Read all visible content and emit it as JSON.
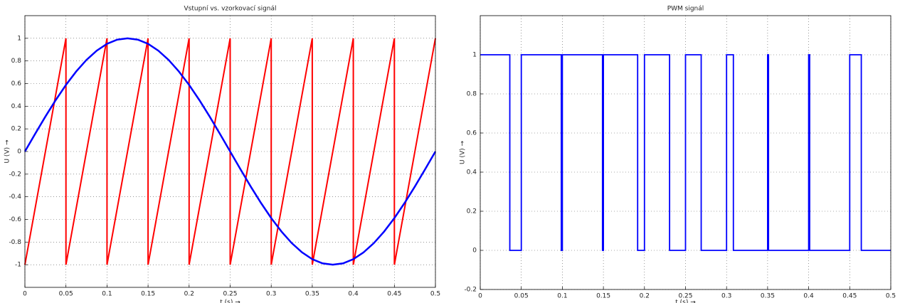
{
  "chart_data": [
    {
      "type": "line",
      "title": "Vstupní vs. vzorkovací signál",
      "xlabel": "t (s) →",
      "ylabel": "U (V) →",
      "xlim": [
        0,
        0.5
      ],
      "ylim": [
        -1.2,
        1.2
      ],
      "xticks": [
        0,
        0.05,
        0.1,
        0.15,
        0.2,
        0.25,
        0.3,
        0.35,
        0.4,
        0.45,
        0.5
      ],
      "yticks": [
        -1,
        -0.8,
        -0.6,
        -0.4,
        -0.2,
        0,
        0.2,
        0.4,
        0.6,
        0.8,
        1
      ],
      "grid": true,
      "series": [
        {
          "color": "#ff0000",
          "linewidth": 2,
          "x": [
            0,
            0.05,
            0.05,
            0.1,
            0.1,
            0.15,
            0.15,
            0.2,
            0.2,
            0.25,
            0.25,
            0.3,
            0.3,
            0.35,
            0.35,
            0.4,
            0.4,
            0.45,
            0.45,
            0.5
          ],
          "values": [
            -1,
            1,
            -1,
            1,
            -1,
            1,
            -1,
            1,
            -1,
            1,
            -1,
            1,
            -1,
            1,
            -1,
            1,
            -1,
            1,
            -1,
            1
          ]
        },
        {
          "color": "#0000ff",
          "linewidth": 2.5,
          "x": [
            0,
            0.0125,
            0.025,
            0.0375,
            0.05,
            0.0625,
            0.075,
            0.0875,
            0.1,
            0.1125,
            0.125,
            0.1375,
            0.15,
            0.1625,
            0.175,
            0.1875,
            0.2,
            0.2125,
            0.225,
            0.2375,
            0.25,
            0.2625,
            0.275,
            0.2875,
            0.3,
            0.3125,
            0.325,
            0.3375,
            0.35,
            0.3625,
            0.375,
            0.3875,
            0.4,
            0.4125,
            0.425,
            0.4375,
            0.45,
            0.4625,
            0.475,
            0.4875,
            0.5
          ],
          "values": [
            0,
            0.156,
            0.309,
            0.454,
            0.588,
            0.707,
            0.809,
            0.891,
            0.951,
            0.988,
            1,
            0.988,
            0.951,
            0.891,
            0.809,
            0.707,
            0.588,
            0.454,
            0.309,
            0.156,
            0,
            -0.156,
            -0.309,
            -0.454,
            -0.588,
            -0.707,
            -0.809,
            -0.891,
            -0.951,
            -0.988,
            -1,
            -0.988,
            -0.951,
            -0.891,
            -0.809,
            -0.707,
            -0.588,
            -0.454,
            -0.309,
            -0.156,
            0
          ]
        }
      ]
    },
    {
      "type": "line",
      "title": "PWM signál",
      "xlabel": "t (s) →",
      "ylabel": "U (V) →",
      "xlim": [
        0,
        0.5
      ],
      "ylim": [
        -0.2,
        1.2
      ],
      "xticks": [
        0,
        0.05,
        0.1,
        0.15,
        0.2,
        0.25,
        0.3,
        0.35,
        0.4,
        0.45,
        0.5
      ],
      "yticks": [
        -0.2,
        0,
        0.2,
        0.4,
        0.6,
        0.8,
        1
      ],
      "grid": true,
      "series": [
        {
          "color": "#0000ff",
          "linewidth": 1.8,
          "x": [
            0,
            0.036,
            0.036,
            0.05,
            0.05,
            0.0987,
            0.0987,
            0.1,
            0.1,
            0.1489,
            0.1489,
            0.15,
            0.15,
            0.1917,
            0.1917,
            0.2,
            0.2,
            0.2306,
            0.2306,
            0.25,
            0.25,
            0.2691,
            0.2691,
            0.3,
            0.3,
            0.3083,
            0.3083,
            0.35,
            0.35,
            0.3511,
            0.3511,
            0.4,
            0.4,
            0.4012,
            0.4012,
            0.45,
            0.45,
            0.4641,
            0.4641,
            0.5
          ],
          "values": [
            1,
            1,
            0,
            0,
            1,
            1,
            0,
            0,
            1,
            1,
            0,
            0,
            1,
            1,
            0,
            0,
            1,
            1,
            0,
            0,
            1,
            1,
            0,
            0,
            1,
            1,
            0,
            0,
            1,
            1,
            0,
            0,
            1,
            1,
            0,
            0,
            1,
            1,
            0,
            0
          ]
        }
      ]
    }
  ]
}
